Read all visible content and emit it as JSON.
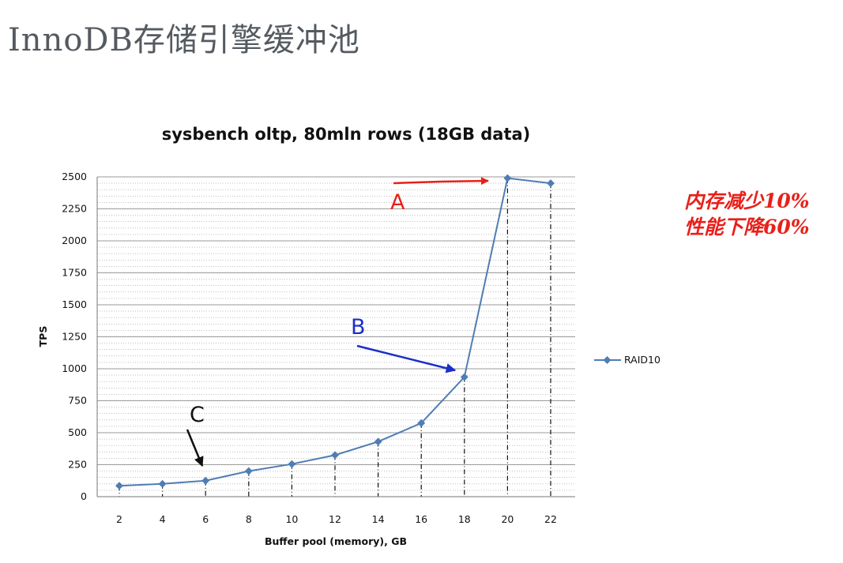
{
  "slide": {
    "title": "InnoDB存储引擎缓冲池",
    "note_lines": [
      "内存减少10%",
      "性能下降60%"
    ]
  },
  "chart_data": {
    "type": "line",
    "title": "sysbench oltp, 80mln rows (18GB data)",
    "xlabel": "Buffer pool (memory), GB",
    "ylabel": "TPS",
    "x": [
      2,
      4,
      6,
      8,
      10,
      12,
      14,
      16,
      18,
      20,
      22
    ],
    "series": [
      {
        "name": "RAID10",
        "values": [
          85,
          100,
          125,
          200,
          255,
          325,
          430,
          575,
          935,
          2490,
          2450
        ]
      }
    ],
    "y_ticks": [
      "0",
      "250",
      "500",
      "750",
      "1000",
      "1250",
      "1500",
      "1750",
      "2000",
      "2250",
      "2500"
    ],
    "x_ticks": [
      "2",
      "4",
      "6",
      "8",
      "10",
      "12",
      "14",
      "16",
      "18",
      "20",
      "22"
    ],
    "ylim": [
      0,
      2500
    ],
    "legend_position": "right",
    "grid": true,
    "annotations": [
      {
        "label": "A",
        "color": "#e8201a"
      },
      {
        "label": "B",
        "color": "#1a2ec8"
      },
      {
        "label": "C",
        "color": "#111111"
      }
    ],
    "colors": {
      "series": "#4f7db4",
      "gridline": "#9a9a9a"
    }
  }
}
